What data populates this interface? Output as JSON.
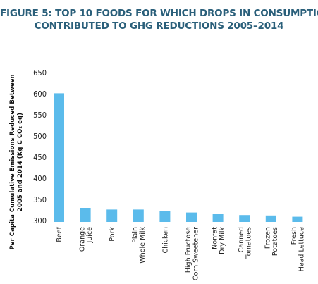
{
  "chart_data": {
    "type": "bar",
    "title_lines": [
      "FIGURE 5: TOP 10 FOODS FOR WHICH DROPS IN CONSUMPTION",
      "CONTRIBUTED TO GHG REDUCTIONS 2005–2014"
    ],
    "ylabel_lines": [
      "Per Capita Cumulative Emissions Reduced Between",
      "2005 and 2014 (Kg C CO₂ eq)"
    ],
    "xlabel": "",
    "categories": [
      [
        "Beef"
      ],
      [
        "Orange",
        "Juice"
      ],
      [
        "Pork"
      ],
      [
        "Plain",
        "Whole Milk"
      ],
      [
        "Chicken"
      ],
      [
        "High Fructose",
        "Corn Sweetener"
      ],
      [
        "Nonfat",
        "Dry Milk"
      ],
      [
        "Canned",
        "Tomatoes"
      ],
      [
        "Frozen",
        "Potatoes"
      ],
      [
        "Fresh",
        "Head Lettuce"
      ]
    ],
    "values": [
      601,
      330,
      326,
      326,
      322,
      319,
      316,
      313,
      312,
      309
    ],
    "ylim": [
      300,
      650
    ],
    "yticks": [
      300,
      350,
      400,
      450,
      500,
      550,
      600,
      650
    ],
    "bar_color": "#5bbbeb",
    "grid": false,
    "legend": "none"
  }
}
